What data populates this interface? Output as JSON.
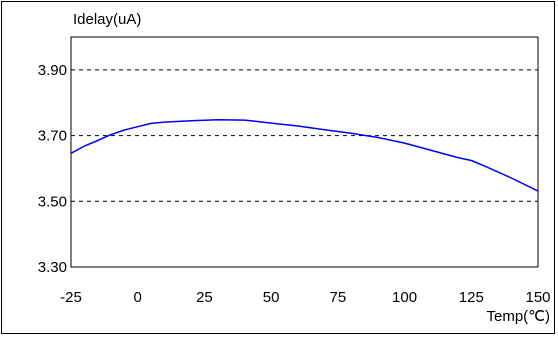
{
  "chart_data": {
    "type": "line",
    "title": "",
    "ylabel": "Idelay(uA)",
    "xlabel": "Temp(℃)",
    "xlim": [
      -25,
      150
    ],
    "ylim": [
      3.3,
      4.0
    ],
    "x_ticks": [
      -25,
      0,
      25,
      50,
      75,
      100,
      125,
      150
    ],
    "x_tick_labels": [
      "-25",
      "0",
      "25",
      "50",
      "75",
      "100",
      "125",
      "150"
    ],
    "y_ticks": [
      3.3,
      3.5,
      3.7,
      3.9
    ],
    "y_tick_labels": [
      "3.30",
      "3.50",
      "3.70",
      "3.90"
    ],
    "grid": "horizontal dashed",
    "legend": "none",
    "series": [
      {
        "color": "#0000ff",
        "x": [
          -25,
          -20,
          -15,
          -10,
          -5,
          0,
          5,
          10,
          20,
          30,
          40,
          50,
          60,
          70,
          80,
          90,
          100,
          110,
          120,
          125,
          130,
          140,
          150
        ],
        "y": [
          3.646,
          3.668,
          3.685,
          3.703,
          3.717,
          3.727,
          3.737,
          3.741,
          3.745,
          3.748,
          3.747,
          3.738,
          3.729,
          3.718,
          3.707,
          3.694,
          3.677,
          3.655,
          3.633,
          3.624,
          3.607,
          3.571,
          3.531
        ]
      }
    ]
  }
}
